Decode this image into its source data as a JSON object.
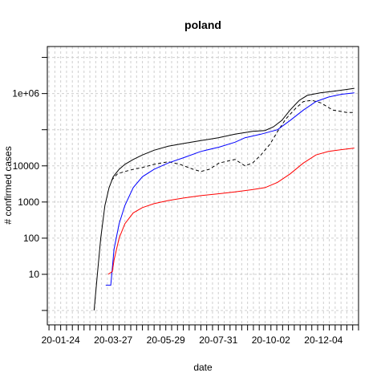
{
  "chart_data": {
    "type": "line",
    "title": "poland",
    "xlabel": "date",
    "ylabel": "# confirmed cases",
    "y_scale": "log10",
    "ylim": [
      0.4,
      20000000
    ],
    "xlim": [
      "2020-01-08",
      "2021-01-15"
    ],
    "grid": true,
    "x_tick_labels": [
      "20-01-24",
      "20-03-27",
      "20-05-29",
      "20-07-31",
      "20-10-02",
      "20-12-04"
    ],
    "y_tick_labels": [
      "10",
      "100",
      "1000",
      "10000",
      "1e+06"
    ],
    "series": [
      {
        "line_style": "solid",
        "color": "#000000",
        "x": [
          "2020-03-04",
          "2020-03-08",
          "2020-03-12",
          "2020-03-17",
          "2020-03-22",
          "2020-03-27",
          "2020-04-03",
          "2020-04-10",
          "2020-04-20",
          "2020-05-01",
          "2020-05-15",
          "2020-06-01",
          "2020-06-20",
          "2020-07-10",
          "2020-07-31",
          "2020-08-20",
          "2020-09-10",
          "2020-09-25",
          "2020-10-05",
          "2020-10-15",
          "2020-10-25",
          "2020-11-05",
          "2020-11-15",
          "2020-11-30",
          "2020-12-15",
          "2021-01-01",
          "2021-01-10"
        ],
        "values": [
          1,
          10,
          100,
          800,
          2500,
          5000,
          8000,
          11000,
          15000,
          20000,
          27000,
          35000,
          42000,
          50000,
          60000,
          75000,
          90000,
          95000,
          120000,
          180000,
          350000,
          650000,
          900000,
          1050000,
          1150000,
          1300000,
          1400000
        ]
      },
      {
        "line_style": "dashed",
        "color": "#000000",
        "x": [
          "2020-03-25",
          "2020-04-01",
          "2020-04-10",
          "2020-04-20",
          "2020-05-01",
          "2020-05-15",
          "2020-06-01",
          "2020-06-15",
          "2020-07-01",
          "2020-07-10",
          "2020-07-20",
          "2020-08-01",
          "2020-08-20",
          "2020-09-01",
          "2020-09-10",
          "2020-09-20",
          "2020-10-01",
          "2020-10-10",
          "2020-10-20",
          "2020-11-01",
          "2020-11-10",
          "2020-11-20",
          "2020-12-01",
          "2020-12-15",
          "2021-01-01",
          "2021-01-10"
        ],
        "values": [
          4000,
          6000,
          7000,
          8000,
          9000,
          11000,
          13000,
          11000,
          8000,
          7000,
          8000,
          12000,
          15000,
          10000,
          12000,
          20000,
          40000,
          90000,
          200000,
          400000,
          600000,
          650000,
          550000,
          350000,
          300000,
          300000
        ]
      },
      {
        "line_style": "solid",
        "color": "#0000ff",
        "x": [
          "2020-03-18",
          "2020-03-20",
          "2020-03-24",
          "2020-03-28",
          "2020-04-03",
          "2020-04-10",
          "2020-04-20",
          "2020-05-01",
          "2020-05-15",
          "2020-06-01",
          "2020-06-20",
          "2020-07-10",
          "2020-08-01",
          "2020-08-20",
          "2020-09-01",
          "2020-09-20",
          "2020-10-10",
          "2020-10-25",
          "2020-11-10",
          "2020-11-25",
          "2020-12-10",
          "2020-12-25",
          "2021-01-10"
        ],
        "values": [
          5,
          5,
          5,
          50,
          250,
          800,
          2500,
          5000,
          8000,
          12000,
          17000,
          25000,
          33000,
          45000,
          60000,
          75000,
          100000,
          180000,
          350000,
          600000,
          800000,
          950000,
          1050000
        ]
      },
      {
        "line_style": "solid",
        "color": "#ff0000",
        "x": [
          "2020-03-21",
          "2020-03-26",
          "2020-03-28",
          "2020-04-03",
          "2020-04-10",
          "2020-04-20",
          "2020-05-01",
          "2020-05-15",
          "2020-06-01",
          "2020-06-20",
          "2020-07-10",
          "2020-08-01",
          "2020-08-20",
          "2020-09-10",
          "2020-09-25",
          "2020-10-10",
          "2020-10-25",
          "2020-11-10",
          "2020-11-25",
          "2020-12-10",
          "2020-12-25",
          "2021-01-10"
        ],
        "values": [
          10,
          12,
          25,
          100,
          250,
          500,
          700,
          900,
          1100,
          1300,
          1500,
          1700,
          1900,
          2200,
          2500,
          3500,
          6000,
          12000,
          20000,
          25000,
          28000,
          31000
        ]
      }
    ]
  }
}
